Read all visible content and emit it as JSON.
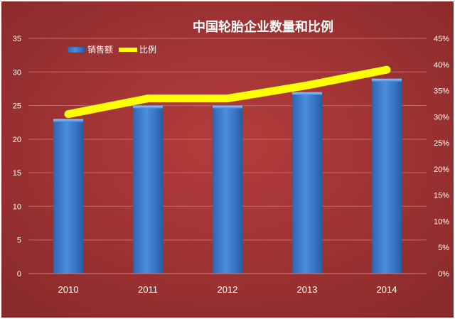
{
  "chart_data": {
    "type": "bar",
    "title": "中国轮胎企业数量和比例",
    "categories": [
      "2010",
      "2011",
      "2012",
      "2013",
      "2014"
    ],
    "series": [
      {
        "name": "销售额",
        "type": "bar",
        "axis": "left",
        "values": [
          23,
          25,
          25,
          27,
          29
        ]
      },
      {
        "name": "比例",
        "type": "line",
        "axis": "right",
        "values": [
          30.5,
          33.5,
          33.5,
          36,
          39
        ]
      }
    ],
    "y_left": {
      "ylim": [
        0,
        35
      ],
      "ticks": [
        "0",
        "5",
        "10",
        "15",
        "20",
        "25",
        "30",
        "35"
      ]
    },
    "y_right": {
      "ylim": [
        0,
        45
      ],
      "ticks": [
        "0%",
        "5%",
        "10%",
        "15%",
        "20%",
        "25%",
        "30%",
        "35%",
        "40%",
        "45%"
      ]
    },
    "grid": true,
    "legend": "top-left",
    "colors": {
      "background": "#9e3232",
      "bar": "#3f7fd0",
      "line": "#ffff00",
      "text": "#ffffff"
    }
  }
}
